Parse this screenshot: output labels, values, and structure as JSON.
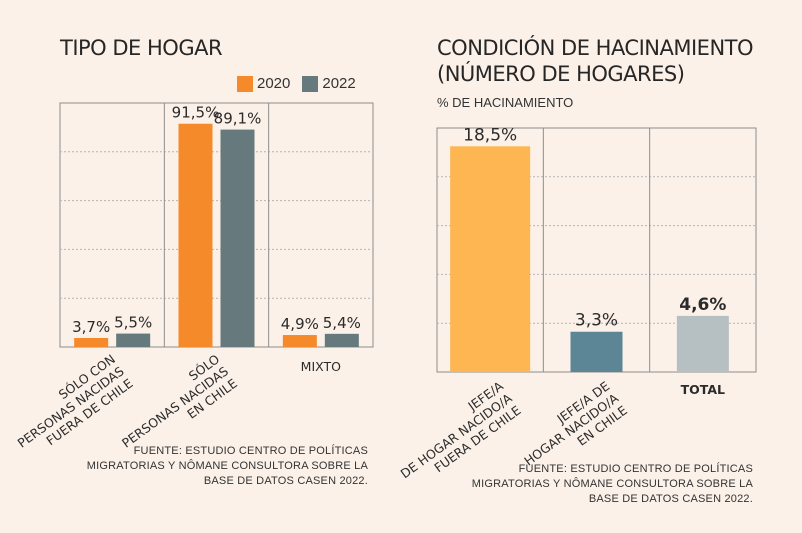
{
  "chart_data": [
    {
      "type": "bar",
      "title": "TIPO DE HOGAR",
      "categories": [
        [
          "SÓLO CON",
          "PERSONAS NACIDAS",
          "FUERA DE CHILE"
        ],
        [
          "SÓLO",
          "PERSONAS NACIDAS",
          "EN CHILE"
        ],
        [
          "MIXTO"
        ]
      ],
      "series": [
        {
          "name": "2020",
          "color": "#f58a2b",
          "values": [
            3.7,
            91.5,
            4.9
          ],
          "labels": [
            "3,7%",
            "91,5%",
            "4,9%"
          ]
        },
        {
          "name": "2022",
          "color": "#66797c",
          "values": [
            5.5,
            89.1,
            5.4
          ],
          "labels": [
            "5,5%",
            "89,1%",
            "5,4%"
          ]
        }
      ],
      "ylim": [
        0,
        100
      ],
      "grid": true,
      "legend": "top-right",
      "source": [
        "FUENTE: ESTUDIO CENTRO DE POLÍTICAS",
        "MIGRATORIAS Y NÔMANE CONSULTORA SOBRE LA",
        "BASE DE DATOS CASEN 2022."
      ]
    },
    {
      "type": "bar",
      "title": [
        "CONDICIÓN DE HACINAMIENTO",
        "(NÚMERO DE HOGARES)"
      ],
      "ylabel": "% DE HACINAMIENTO",
      "categories": [
        [
          "JEFE/A",
          "DE HOGAR NACIDO/A",
          "FUERA DE CHILE"
        ],
        [
          "JEFE/A DE",
          "HOGAR NACIDO/A",
          "EN CHILE"
        ],
        [
          "TOTAL"
        ]
      ],
      "values": [
        18.5,
        3.3,
        4.6
      ],
      "labels": [
        "18,5%",
        "3,3%",
        "4,6%"
      ],
      "colors": [
        "#fdb651",
        "#5c8596",
        "#b6c0c2"
      ],
      "ylim": [
        0,
        20
      ],
      "grid": true,
      "source": [
        "FUENTE: ESTUDIO CENTRO DE POLÍTICAS",
        "MIGRATORIAS Y NÔMANE CONSULTORA SOBRE LA",
        "BASE DE DATOS CASEN 2022."
      ]
    }
  ]
}
